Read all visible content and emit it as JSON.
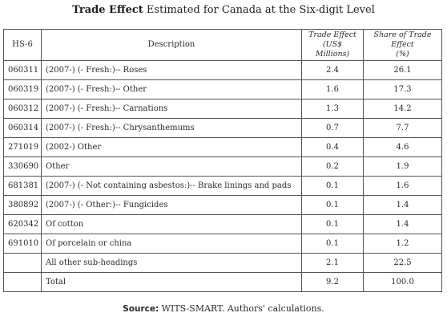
{
  "title": {
    "bold": "Trade Effect",
    "rest": " Estimated for Canada at the Six-digit Level"
  },
  "table": {
    "headers": {
      "hs6": "HS-6",
      "description": "Description",
      "trade_effect_line1": "Trade Effect",
      "trade_effect_line2": "(US$ Millions)",
      "share_line1": "Share of Trade Effect",
      "share_line2": "(%)"
    },
    "rows": [
      {
        "code": "060311",
        "desc": "(2007-) (- Fresh:)-- Roses",
        "effect": "2.4",
        "share": "26.1"
      },
      {
        "code": "060319",
        "desc": "(2007-) (- Fresh:)-- Other",
        "effect": "1.6",
        "share": "17.3"
      },
      {
        "code": "060312",
        "desc": "(2007-) (- Fresh:)-- Carnations",
        "effect": "1.3",
        "share": "14.2"
      },
      {
        "code": "060314",
        "desc": "(2007-) (- Fresh:)-- Chrysanthemums",
        "effect": "0.7",
        "share": "7.7"
      },
      {
        "code": "271019",
        "desc": "(2002-) Other",
        "effect": "0.4",
        "share": "4.6"
      },
      {
        "code": "330690",
        "desc": "Other",
        "effect": "0.2",
        "share": "1.9"
      },
      {
        "code": "681381",
        "desc": "(2007-) (- Not containing asbestos:)-- Brake linings and pads",
        "effect": "0.1",
        "share": "1.6"
      },
      {
        "code": "380892",
        "desc": "(2007-) (- Other:)-- Fungicides",
        "effect": "0.1",
        "share": "1.4"
      },
      {
        "code": "620342",
        "desc": "Of cotton",
        "effect": "0.1",
        "share": "1.4"
      },
      {
        "code": "691010",
        "desc": "Of porcelain or china",
        "effect": "0.1",
        "share": "1.2"
      },
      {
        "code": "",
        "desc": "All other sub-headings",
        "effect": "2.1",
        "share": "22.5"
      },
      {
        "code": "",
        "desc": "Total",
        "effect": "9.2",
        "share": "100.0"
      }
    ]
  },
  "source": {
    "label": "Source:",
    "text": " WITS-SMART. Authors' calculations."
  }
}
